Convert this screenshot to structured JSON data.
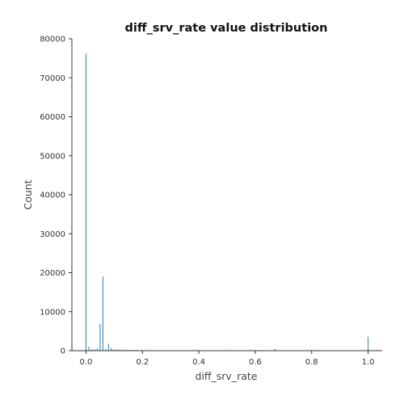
{
  "chart_data": {
    "type": "bar",
    "title": "diff_srv_rate value distribution",
    "xlabel": "diff_srv_rate",
    "ylabel": "Count",
    "xlim": [
      -0.05,
      1.05
    ],
    "ylim": [
      0,
      80000
    ],
    "xticks": [
      "0.0",
      "0.2",
      "0.4",
      "0.6",
      "0.8",
      "1.0"
    ],
    "yticks": [
      "0",
      "10000",
      "20000",
      "30000",
      "40000",
      "50000",
      "60000",
      "70000",
      "80000"
    ],
    "grid": false,
    "bar_color": "#4c8fc9",
    "x": [
      0.0,
      0.01,
      0.02,
      0.03,
      0.04,
      0.05,
      0.06,
      0.07,
      0.08,
      0.09,
      0.1,
      0.11,
      0.12,
      0.13,
      0.14,
      0.15,
      0.17,
      0.18,
      0.2,
      0.22,
      0.25,
      0.29,
      0.33,
      0.5,
      0.67,
      1.0
    ],
    "values": [
      76200,
      1000,
      400,
      300,
      600,
      6800,
      19000,
      400,
      1800,
      700,
      300,
      400,
      300,
      300,
      250,
      200,
      200,
      200,
      150,
      150,
      100,
      100,
      100,
      150,
      500,
      3600
    ]
  }
}
